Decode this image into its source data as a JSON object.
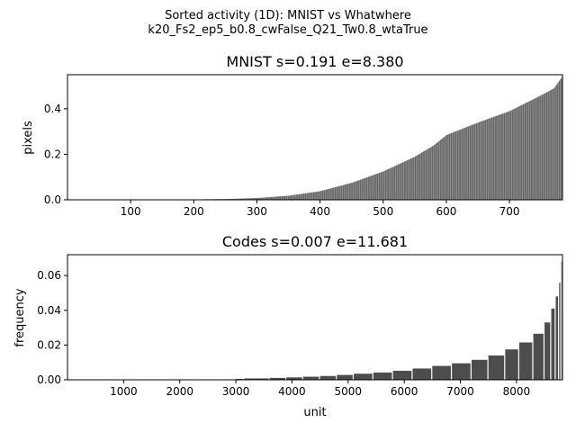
{
  "figure": {
    "suptitle_line1": "Sorted activity (1D): MNIST vs Whatwhere",
    "suptitle_line2": "k20_Fs2_ep5_b0.8_cwFalse_Q21_Tw0.8_wtaTrue"
  },
  "chart_data": [
    {
      "type": "bar",
      "title": "MNIST s=0.191 e=8.380",
      "xlabel": "",
      "ylabel": "pixels",
      "xlim": [
        0,
        784
      ],
      "ylim": [
        0,
        0.55
      ],
      "xticks": [
        100,
        200,
        300,
        400,
        500,
        600,
        700
      ],
      "yticks": [
        0.0,
        0.2,
        0.4
      ],
      "ytick_labels": [
        "0.0",
        "0.2",
        "0.4"
      ],
      "grid": false,
      "bar_color": "#4d4d4d",
      "n_units": 784,
      "curve": [
        [
          0,
          0
        ],
        [
          200,
          0
        ],
        [
          210,
          0.002
        ],
        [
          260,
          0.004
        ],
        [
          300,
          0.008
        ],
        [
          350,
          0.018
        ],
        [
          400,
          0.038
        ],
        [
          450,
          0.075
        ],
        [
          500,
          0.125
        ],
        [
          550,
          0.19
        ],
        [
          580,
          0.24
        ],
        [
          600,
          0.285
        ],
        [
          650,
          0.34
        ],
        [
          700,
          0.39
        ],
        [
          750,
          0.46
        ],
        [
          770,
          0.49
        ],
        [
          784,
          0.545
        ]
      ]
    },
    {
      "type": "bar",
      "title": "Codes s=0.007 e=11.681",
      "xlabel": "unit",
      "ylabel": "frequency",
      "xlim": [
        0,
        8820
      ],
      "ylim": [
        0,
        0.072
      ],
      "xticks": [
        1000,
        2000,
        3000,
        4000,
        5000,
        6000,
        7000,
        8000
      ],
      "yticks": [
        0.0,
        0.02,
        0.04,
        0.06
      ],
      "ytick_labels": [
        "0.00",
        "0.02",
        "0.04",
        "0.06"
      ],
      "grid": false,
      "bar_color": "#4d4d4d",
      "steps": [
        [
          3000,
          3150,
          0.0005
        ],
        [
          3150,
          3600,
          0.0008
        ],
        [
          3600,
          3900,
          0.0011
        ],
        [
          3900,
          4200,
          0.0014
        ],
        [
          4200,
          4500,
          0.0018
        ],
        [
          4500,
          4800,
          0.0022
        ],
        [
          4800,
          5100,
          0.0028
        ],
        [
          5100,
          5450,
          0.0035
        ],
        [
          5450,
          5800,
          0.0042
        ],
        [
          5800,
          6150,
          0.0052
        ],
        [
          6150,
          6500,
          0.0065
        ],
        [
          6500,
          6850,
          0.008
        ],
        [
          6850,
          7200,
          0.0095
        ],
        [
          7200,
          7500,
          0.0115
        ],
        [
          7500,
          7800,
          0.014
        ],
        [
          7800,
          8050,
          0.0175
        ],
        [
          8050,
          8300,
          0.0215
        ],
        [
          8300,
          8500,
          0.0265
        ],
        [
          8500,
          8620,
          0.033
        ],
        [
          8620,
          8700,
          0.041
        ],
        [
          8700,
          8760,
          0.048
        ],
        [
          8760,
          8800,
          0.056
        ],
        [
          8800,
          8820,
          0.068
        ]
      ]
    }
  ]
}
